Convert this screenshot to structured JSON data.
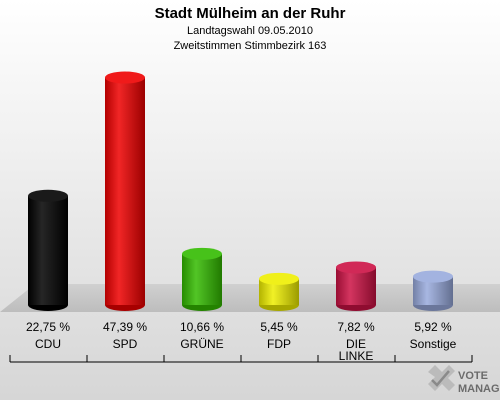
{
  "chart_data": {
    "type": "bar",
    "title": "Stadt Mülheim an der Ruhr",
    "subtitle": "Landtagswahl 09.05.2010",
    "subtitle2": "Zweitstimmen Stimmbezirk 163",
    "categories": [
      "CDU",
      "SPD",
      "GRÜNE",
      "FDP",
      "DIE LINKE",
      "Sonstige"
    ],
    "category_lines": [
      [
        "CDU"
      ],
      [
        "SPD"
      ],
      [
        "GRÜNE"
      ],
      [
        "FDP"
      ],
      [
        "DIE",
        "LINKE"
      ],
      [
        "Sonstige"
      ]
    ],
    "values": [
      22.75,
      47.39,
      10.66,
      5.45,
      7.82,
      5.92
    ],
    "value_labels": [
      "22,75 %",
      "47,39 %",
      "10,66 %",
      "5,45 %",
      "7,82 %",
      "5,92 %"
    ],
    "colors": [
      "#000000",
      "#ee0000",
      "#33bb00",
      "#eeee00",
      "#cc1144",
      "#99aadd"
    ],
    "ylim": [
      0,
      50
    ],
    "grid": false,
    "legend": false
  },
  "logo": {
    "line1": "VOTE",
    "line2": "MANAGER",
    "icon": "checkmark-cross-icon"
  }
}
